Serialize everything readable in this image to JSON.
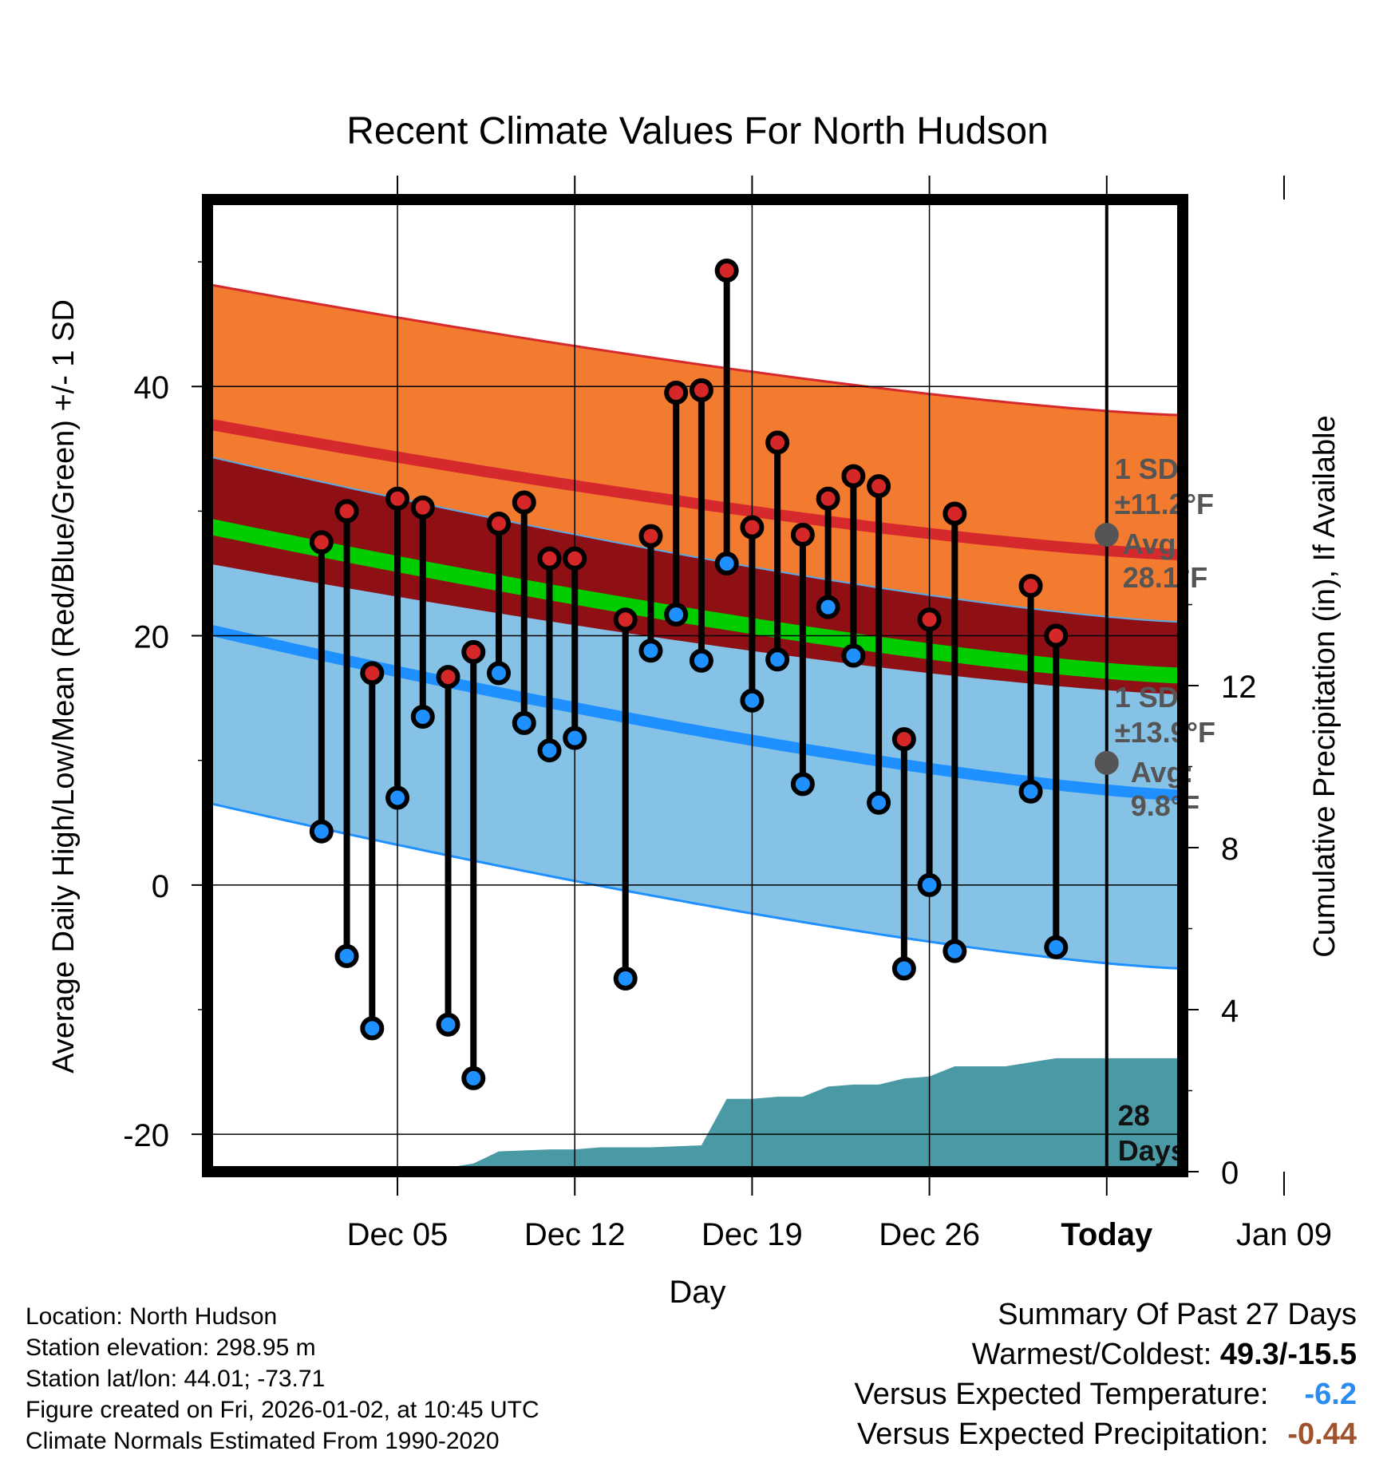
{
  "chart_data": {
    "type": "line",
    "title": "Recent Climate Values For North Hudson",
    "xlabel": "Day",
    "ylabel": "Average Daily High/Low/Mean (Red/Blue/Green) +/- 1 SD",
    "y2label": "Cumulative Precipitation (in), If Available",
    "ylim": [
      -23,
      55
    ],
    "y2lim": [
      0,
      24
    ],
    "xlim": [
      -3.5,
      35
    ],
    "yticks": [
      -20,
      0,
      20,
      40
    ],
    "y2ticks": [
      0,
      4,
      8,
      12
    ],
    "xticks": [
      {
        "x": 4,
        "label": "Dec 05"
      },
      {
        "x": 11,
        "label": "Dec 12"
      },
      {
        "x": 18,
        "label": "Dec 19"
      },
      {
        "x": 25,
        "label": "Dec 26"
      },
      {
        "x": 32,
        "label": "Today"
      },
      {
        "x": 39,
        "label": "Jan 09"
      }
    ],
    "normals": {
      "high_mean_start": 37.0,
      "high_mean_end": 26.5,
      "high_sd": 11.2,
      "low_mean_start": 20.5,
      "low_mean_end": 7.2,
      "low_sd": 13.9,
      "mean_mean_start": 28.8,
      "mean_mean_end": 16.8
    },
    "today_annotations": {
      "high_sd_label": "1 SD:",
      "high_sd_value": "±11.2°F",
      "high_avg_label": "Avg:",
      "high_avg_value": "28.1°F",
      "high_avg": 28.1,
      "low_sd_label": "1 SD:",
      "low_sd_value": "±13.9°F",
      "low_avg_label": "Avg:",
      "low_avg_value": "9.8°F",
      "low_avg": 9.8,
      "days_label": "28",
      "days_unit": "Days"
    },
    "series": [
      {
        "name": "High",
        "color": "#d62728",
        "points": [
          [
            1,
            27.5
          ],
          [
            2,
            30
          ],
          [
            3,
            17
          ],
          [
            4,
            31
          ],
          [
            5,
            30.3
          ],
          [
            6,
            16.7
          ],
          [
            7,
            18.7
          ],
          [
            8,
            29
          ],
          [
            9,
            30.7
          ],
          [
            10,
            26.2
          ],
          [
            11,
            26.2
          ],
          [
            13,
            21.3
          ],
          [
            14,
            28
          ],
          [
            15,
            39.5
          ],
          [
            16,
            39.7
          ],
          [
            17,
            49.3
          ],
          [
            18,
            28.7
          ],
          [
            19,
            35.5
          ],
          [
            20,
            28.1
          ],
          [
            21,
            31
          ],
          [
            22,
            32.8
          ],
          [
            23,
            32
          ],
          [
            24,
            11.7
          ],
          [
            25,
            21.3
          ],
          [
            26,
            29.8
          ],
          [
            29,
            24
          ],
          [
            30,
            20
          ]
        ]
      },
      {
        "name": "Low",
        "color": "#1e90ff",
        "points": [
          [
            1,
            4.3
          ],
          [
            2,
            -5.7
          ],
          [
            3,
            -11.5
          ],
          [
            4,
            7
          ],
          [
            5,
            13.5
          ],
          [
            6,
            -11.2
          ],
          [
            7,
            -15.5
          ],
          [
            8,
            17
          ],
          [
            9,
            13
          ],
          [
            10,
            10.8
          ],
          [
            11,
            11.8
          ],
          [
            13,
            -7.5
          ],
          [
            14,
            18.8
          ],
          [
            15,
            21.7
          ],
          [
            16,
            18
          ],
          [
            17,
            25.8
          ],
          [
            18,
            14.8
          ],
          [
            19,
            18.1
          ],
          [
            20,
            8.1
          ],
          [
            21,
            22.3
          ],
          [
            22,
            18.4
          ],
          [
            23,
            6.6
          ],
          [
            24,
            -6.7
          ],
          [
            25,
            0
          ],
          [
            26,
            -5.3
          ],
          [
            29,
            7.5
          ],
          [
            30,
            -5
          ]
        ]
      }
    ],
    "precipitation": {
      "name": "Cumulative Precipitation",
      "color": "#4a9aa6",
      "points": [
        [
          1,
          0
        ],
        [
          4,
          0
        ],
        [
          5,
          0.05
        ],
        [
          6,
          0.1
        ],
        [
          7,
          0.2
        ],
        [
          8,
          0.5
        ],
        [
          10,
          0.55
        ],
        [
          11,
          0.55
        ],
        [
          12,
          0.6
        ],
        [
          14,
          0.6
        ],
        [
          16,
          0.65
        ],
        [
          17,
          1.8
        ],
        [
          18,
          1.8
        ],
        [
          19,
          1.85
        ],
        [
          20,
          1.85
        ],
        [
          21,
          2.1
        ],
        [
          22,
          2.15
        ],
        [
          23,
          2.15
        ],
        [
          24,
          2.3
        ],
        [
          25,
          2.35
        ],
        [
          26,
          2.6
        ],
        [
          28,
          2.6
        ],
        [
          30,
          2.8
        ],
        [
          32,
          2.8
        ],
        [
          35,
          2.8
        ]
      ]
    }
  },
  "footer": {
    "location": "Location: North Hudson",
    "elevation": "Station elevation: 298.95 m",
    "latlon": "Station lat/lon: 44.01; -73.71",
    "created": "Figure created on Fri, 2026-01-02, at 10:45 UTC",
    "normals": "Climate Normals Estimated From 1990-2020"
  },
  "summary": {
    "title": "Summary Of Past 27 Days",
    "warmest_label": "Warmest/Coldest:",
    "warmest_value": "49.3/-15.5",
    "temp_label": "Versus Expected Temperature:",
    "temp_value": "-6.2",
    "temp_color": "#2a8cf0",
    "precip_label": "Versus Expected Precipitation:",
    "precip_value": "-0.44",
    "precip_color": "#a0522d"
  },
  "colors": {
    "high_band": "#f27b2f",
    "overlap_band": "#8e1015",
    "low_band": "#86c1e6",
    "high_line": "#d6292e",
    "low_line": "#1e90ff",
    "mean_line": "#00cc00",
    "annotation": "#555555"
  }
}
